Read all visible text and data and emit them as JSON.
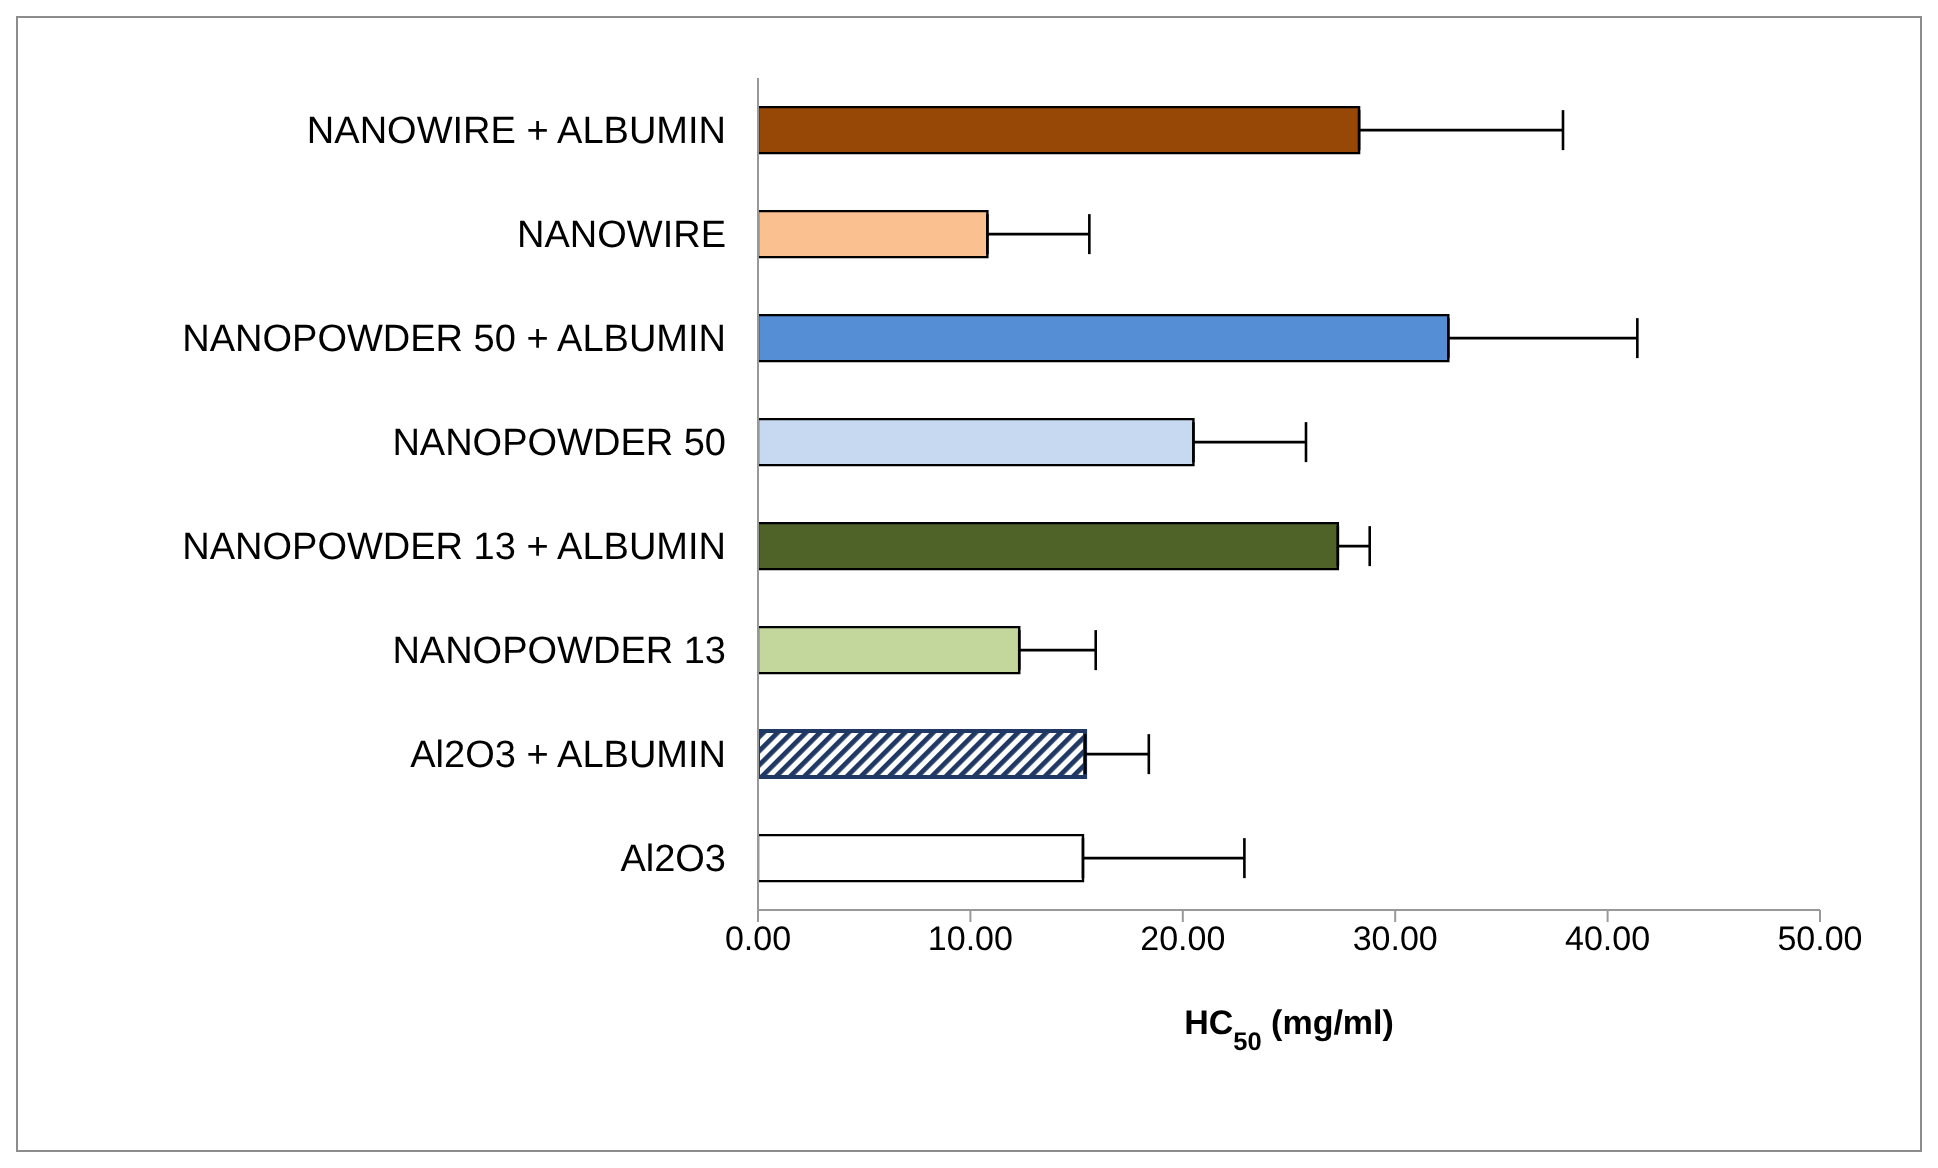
{
  "chart_data": {
    "type": "bar",
    "orientation": "horizontal",
    "xlabel": "HC$_{50}$ (mg/ml)",
    "categories": [
      "NANOWIRE + ALBUMIN",
      "NANOWIRE",
      "NANOPOWDER 50 + ALBUMIN",
      "NANOPOWDER 50",
      "NANOPOWDER 13 + ALBUMIN",
      "NANOPOWDER 13",
      "Al2O3 + ALBUMIN",
      "Al2O3"
    ],
    "values": [
      28.3,
      10.8,
      32.5,
      20.5,
      27.3,
      12.3,
      15.4,
      15.3
    ],
    "errors": [
      [
        28.3,
        37.9
      ],
      [
        10.8,
        15.6
      ],
      [
        32.5,
        41.4
      ],
      [
        20.5,
        25.8
      ],
      [
        27.3,
        28.8
      ],
      [
        12.3,
        15.9
      ],
      [
        15.4,
        18.4
      ],
      [
        15.3,
        22.9
      ]
    ],
    "colors": [
      "#974706",
      "#fac090",
      "#558ed5",
      "#c6d9f1",
      "#4f6228",
      "#c3d69b",
      "#1f3864",
      "#ffffff"
    ],
    "xlim": [
      0,
      50
    ],
    "xticks": [
      {
        "value": 0,
        "label": "0.00"
      },
      {
        "value": 10,
        "label": "10.00"
      },
      {
        "value": 20,
        "label": "20.00"
      },
      {
        "value": 30,
        "label": "30.00"
      },
      {
        "value": 40,
        "label": "40.00"
      },
      {
        "value": 50,
        "label": "50.00"
      }
    ],
    "grid": false,
    "legend": false
  }
}
